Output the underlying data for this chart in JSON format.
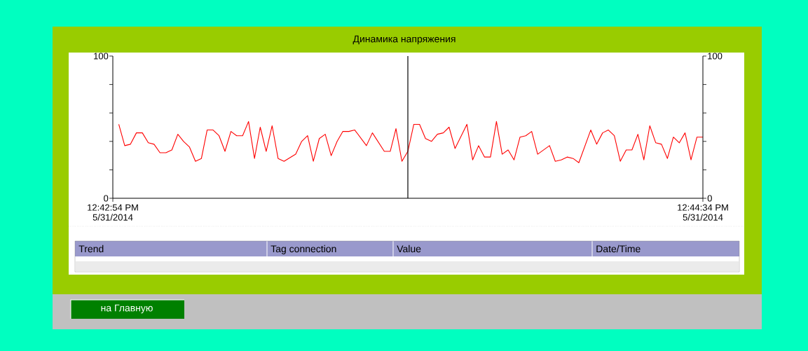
{
  "chart_data": {
    "type": "line",
    "title": "Динамика напряжения",
    "x": [
      12.71528,
      12.71556,
      12.71583,
      12.71611,
      12.71639,
      12.71667,
      12.71694,
      12.71722,
      12.7175,
      12.71778,
      12.71806,
      12.71833,
      12.71861,
      12.71889,
      12.71917,
      12.71944,
      12.71972,
      12.72,
      12.72028,
      12.72056,
      12.72083,
      12.72111,
      12.72139,
      12.72167,
      12.72194,
      12.72222,
      12.7225,
      12.72278,
      12.72306,
      12.72361,
      12.72389,
      12.72417,
      12.72444,
      12.72472,
      12.725,
      12.72528,
      12.72556,
      12.72583,
      12.72611,
      12.72639,
      12.72694,
      12.72722,
      12.72778,
      12.72806,
      12.72833,
      12.72861,
      12.72889,
      12.72917,
      12.72944,
      12.72972,
      12.73,
      12.73028,
      12.73056,
      12.73083,
      12.73111,
      12.73167,
      12.73194,
      12.73222,
      12.7325,
      12.73278,
      12.73306,
      12.73333,
      12.73361,
      12.73389,
      12.73417,
      12.73444,
      12.73472,
      12.735,
      12.73556,
      12.73583,
      12.73611,
      12.73639,
      12.73667,
      12.73694,
      12.7375,
      12.73778,
      12.73806,
      12.73833,
      12.73861,
      12.73889,
      12.73917,
      12.73944,
      12.73972,
      12.74,
      12.74028,
      12.74056,
      12.74083,
      12.74111,
      12.74139,
      12.74167,
      12.74194,
      12.74222,
      12.7425,
      12.74278
    ],
    "series": [
      {
        "color": "#ff0000",
        "values": [
          52,
          37,
          38,
          46,
          46,
          39,
          38,
          32,
          32,
          34,
          45,
          40,
          36,
          26,
          28,
          48,
          48,
          44,
          33,
          47,
          44,
          44,
          54,
          28,
          50,
          33,
          51,
          28,
          26,
          31,
          40,
          44,
          26,
          42,
          45,
          30,
          40,
          47,
          47,
          48,
          37,
          46,
          33,
          33,
          49,
          26,
          33,
          52,
          52,
          42,
          40,
          45,
          46,
          50,
          35,
          52,
          27,
          37,
          29,
          29,
          54,
          31,
          34,
          27,
          43,
          44,
          47,
          31,
          37,
          26,
          27,
          29,
          28,
          25,
          48,
          38,
          46,
          48,
          44,
          26,
          34,
          34,
          45,
          27,
          51,
          39,
          38,
          28,
          43,
          39,
          46,
          27,
          43,
          43
        ]
      }
    ],
    "xlim": [
      12.715,
      12.74278
    ],
    "xticks": [
      {
        "value": 12.715,
        "label": "12:42:54 PM"
      },
      {
        "value": 12.74278,
        "label": "12:44:34 PM"
      }
    ],
    "ylim": [
      0,
      100
    ],
    "yticks": [
      0,
      {
        "value": 20,
        "label": null
      },
      {
        "value": 40,
        "label": null
      },
      {
        "value": 60,
        "label": null
      },
      {
        "value": 80,
        "label": null
      },
      100
    ],
    "y2lim": [
      0,
      100
    ],
    "y2ticks": [
      0,
      {
        "value": 20,
        "label": null
      },
      {
        "value": 40,
        "label": null
      },
      {
        "value": 60,
        "label": null
      },
      {
        "value": 80,
        "label": null
      },
      100
    ],
    "ref_lines": [
      {
        "axis": "x",
        "value": 12.72889,
        "color": "#000000"
      }
    ],
    "annotations": [
      "Trend",
      "Tag connection",
      "Value",
      "Date/Time",
      "на Главную",
      "5/31/2014",
      "5/31/2014"
    ]
  }
}
